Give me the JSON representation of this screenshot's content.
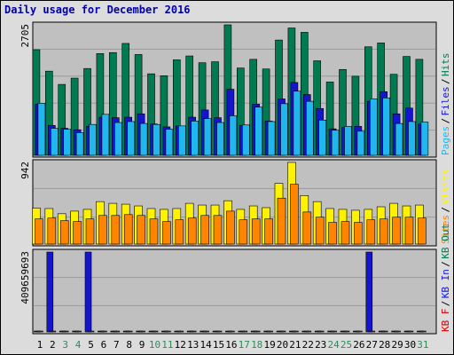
{
  "title": "Daily usage for December 2016",
  "colors": {
    "hits": "#007a50",
    "files": "#1515d0",
    "pages": "#1fb7ee",
    "visits": "#fff200",
    "sites": "#ff8400",
    "kbin": "#1515d0",
    "kbout": "#007a50",
    "kbf": "#d00000",
    "weekend_label": "#2e8b57",
    "weekday_label": "#000000",
    "panel_bg": "#c0c0c0",
    "frame_bg": "#dcdcdc"
  },
  "chart_data": [
    {
      "type": "bar",
      "panel": "hits",
      "ylabel_max": "2705",
      "ymax": 2705,
      "legend": [
        {
          "text": "Pages",
          "color": "#1fb7ee"
        },
        {
          "text": "Files",
          "color": "#1515d0"
        },
        {
          "text": "Hits",
          "color": "#007a50"
        }
      ],
      "categories": [
        "1",
        "2",
        "3",
        "4",
        "5",
        "6",
        "7",
        "8",
        "9",
        "10",
        "11",
        "12",
        "13",
        "14",
        "15",
        "16",
        "17",
        "18",
        "19",
        "20",
        "21",
        "22",
        "23",
        "24",
        "25",
        "26",
        "27",
        "28",
        "29",
        "30",
        "31"
      ],
      "series": [
        {
          "name": "Hits",
          "values": [
            2190,
            1745,
            1470,
            1600,
            1800,
            2110,
            2130,
            2320,
            2090,
            1690,
            1650,
            1980,
            2060,
            1920,
            1940,
            2705,
            1810,
            1990,
            1790,
            2390,
            2640,
            2550,
            1960,
            1520,
            1780,
            1640,
            2250,
            2330,
            1680,
            2050,
            1990
          ]
        },
        {
          "name": "Files",
          "values": [
            1060,
            620,
            560,
            530,
            600,
            790,
            780,
            790,
            860,
            650,
            590,
            610,
            790,
            940,
            780,
            1370,
            620,
            1060,
            710,
            1170,
            1510,
            1260,
            970,
            550,
            580,
            600,
            1120,
            1320,
            860,
            980,
            650
          ]
        },
        {
          "name": "Pages",
          "values": [
            1080,
            560,
            540,
            470,
            640,
            850,
            680,
            700,
            660,
            640,
            540,
            610,
            710,
            760,
            680,
            820,
            630,
            1000,
            700,
            1070,
            1330,
            1120,
            730,
            520,
            600,
            500,
            1170,
            1190,
            660,
            700,
            690
          ]
        }
      ]
    },
    {
      "type": "bar",
      "panel": "visits",
      "ylabel_max": "942",
      "ymax": 942,
      "legend": [
        {
          "text": "Sites",
          "color": "#ff8400"
        },
        {
          "text": "Visits",
          "color": "#fff200"
        }
      ],
      "categories": [
        "1",
        "2",
        "3",
        "4",
        "5",
        "6",
        "7",
        "8",
        "9",
        "10",
        "11",
        "12",
        "13",
        "14",
        "15",
        "16",
        "17",
        "18",
        "19",
        "20",
        "21",
        "22",
        "23",
        "24",
        "25",
        "26",
        "27",
        "28",
        "29",
        "30",
        "31"
      ],
      "series": [
        {
          "name": "Visits",
          "values": [
            415,
            410,
            350,
            380,
            400,
            490,
            470,
            460,
            440,
            410,
            400,
            410,
            470,
            450,
            450,
            500,
            400,
            440,
            420,
            700,
            942,
            560,
            490,
            410,
            400,
            390,
            400,
            430,
            470,
            440,
            450
          ]
        },
        {
          "name": "Sites",
          "values": [
            290,
            300,
            270,
            260,
            290,
            330,
            330,
            340,
            330,
            290,
            260,
            280,
            300,
            330,
            330,
            380,
            280,
            290,
            290,
            530,
            690,
            370,
            310,
            250,
            260,
            250,
            280,
            290,
            310,
            310,
            300
          ]
        }
      ]
    },
    {
      "type": "bar",
      "panel": "kbytes",
      "ylabel_max": "409659693",
      "ymax": 409659693,
      "legend": [
        {
          "text": "KB F",
          "color": "#d00000"
        },
        {
          "text": "KB In",
          "color": "#1515d0"
        },
        {
          "text": "KB Out",
          "color": "#007a50"
        }
      ],
      "categories": [
        "1",
        "2",
        "3",
        "4",
        "5",
        "6",
        "7",
        "8",
        "9",
        "10",
        "11",
        "12",
        "13",
        "14",
        "15",
        "16",
        "17",
        "18",
        "19",
        "20",
        "21",
        "22",
        "23",
        "24",
        "25",
        "26",
        "27",
        "28",
        "29",
        "30",
        "31"
      ],
      "series": [
        {
          "name": "KB In",
          "values": [
            0,
            409659693,
            0,
            0,
            409659693,
            0,
            0,
            0,
            0,
            0,
            0,
            0,
            0,
            0,
            0,
            0,
            0,
            0,
            0,
            0,
            0,
            0,
            0,
            0,
            0,
            0,
            409659693,
            0,
            0,
            0,
            0
          ]
        },
        {
          "name": "KB Out",
          "values": [
            0,
            0,
            0,
            0,
            0,
            0,
            0,
            0,
            0,
            0,
            0,
            0,
            0,
            0,
            0,
            0,
            0,
            0,
            0,
            0,
            0,
            0,
            0,
            0,
            0,
            0,
            0,
            0,
            0,
            0,
            0
          ]
        }
      ]
    }
  ],
  "weekend_days": [
    "3",
    "4",
    "10",
    "11",
    "17",
    "18",
    "24",
    "25",
    "31"
  ]
}
